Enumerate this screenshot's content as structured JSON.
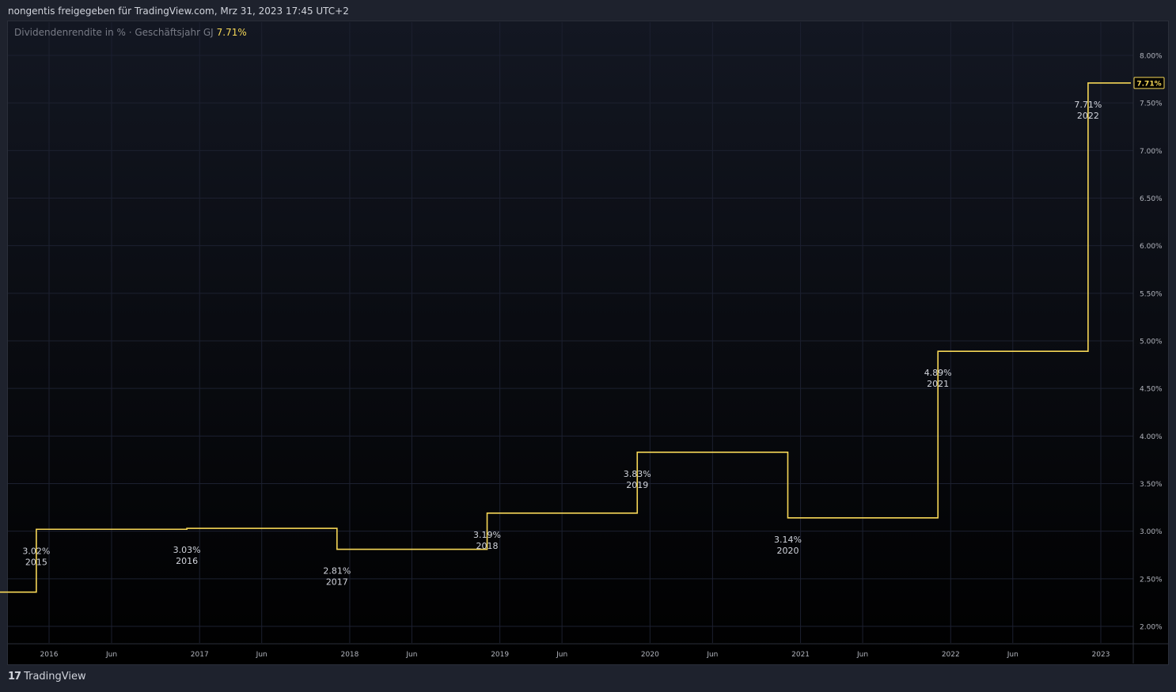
{
  "header": {
    "shared_by": "nongentis freigegeben für TradingView.com, Mrz 31, 2023 17:45 UTC+2"
  },
  "legend": {
    "label": "Dividendenrendite in % · Geschäftsjahr GJ",
    "value": "7.71%"
  },
  "footer": {
    "logo_icon": "tradingview-logo-icon",
    "brand": "TradingView"
  },
  "colors": {
    "line": "#f6d757",
    "grid": "#1c2030",
    "axis_text": "#b2b5be",
    "label_text": "#d1d4dc"
  },
  "chart_data": {
    "type": "line",
    "step": true,
    "series": [
      {
        "values": [
          {
            "x": "2015-08-01",
            "y": 2.36
          },
          {
            "x": "2015-12-01",
            "y": 3.02
          },
          {
            "x": "2016-12-01",
            "y": 3.03
          },
          {
            "x": "2017-12-01",
            "y": 2.81
          },
          {
            "x": "2018-11-01",
            "y": 2.81
          },
          {
            "x": "2018-12-01",
            "y": 3.19
          },
          {
            "x": "2019-12-01",
            "y": 3.83
          },
          {
            "x": "2020-12-01",
            "y": 3.14
          },
          {
            "x": "2021-12-01",
            "y": 4.89
          },
          {
            "x": "2022-12-01",
            "y": 7.71
          },
          {
            "x": "2023-03-15",
            "y": 7.71
          }
        ]
      }
    ],
    "annotations": [
      {
        "x": "2015-12-01",
        "value": "3.02%",
        "year": "2015",
        "pos": "below"
      },
      {
        "x": "2016-12-01",
        "value": "3.03%",
        "year": "2016",
        "pos": "below"
      },
      {
        "x": "2017-12-01",
        "value": "2.81%",
        "year": "2017",
        "pos": "below"
      },
      {
        "x": "2018-12-01",
        "value": "3.19%",
        "year": "2018",
        "pos": "below"
      },
      {
        "x": "2019-12-01",
        "value": "3.83%",
        "year": "2019",
        "pos": "below"
      },
      {
        "x": "2020-12-01",
        "value": "3.14%",
        "year": "2020",
        "pos": "below"
      },
      {
        "x": "2021-12-01",
        "value": "4.89%",
        "year": "2021",
        "pos": "below"
      },
      {
        "x": "2022-12-01",
        "value": "7.71%",
        "year": "2022",
        "pos": "below"
      }
    ],
    "x_ticks": [
      {
        "x": "2016-01-01",
        "label": "2016"
      },
      {
        "x": "2016-06-01",
        "label": "Jun"
      },
      {
        "x": "2017-01-01",
        "label": "2017"
      },
      {
        "x": "2017-06-01",
        "label": "Jun"
      },
      {
        "x": "2018-01-01",
        "label": "2018"
      },
      {
        "x": "2018-06-01",
        "label": "Jun"
      },
      {
        "x": "2019-01-01",
        "label": "2019"
      },
      {
        "x": "2019-06-01",
        "label": "Jun"
      },
      {
        "x": "2020-01-01",
        "label": "2020"
      },
      {
        "x": "2020-06-01",
        "label": "Jun"
      },
      {
        "x": "2021-01-01",
        "label": "2021"
      },
      {
        "x": "2021-06-01",
        "label": "Jun"
      },
      {
        "x": "2022-01-01",
        "label": "2022"
      },
      {
        "x": "2022-06-01",
        "label": "Jun"
      },
      {
        "x": "2023-01-01",
        "label": "2023"
      }
    ],
    "y_ticks": [
      {
        "y": 2.0,
        "label": "2.00%"
      },
      {
        "y": 2.5,
        "label": "2.50%"
      },
      {
        "y": 3.0,
        "label": "3.00%"
      },
      {
        "y": 3.5,
        "label": "3.50%"
      },
      {
        "y": 4.0,
        "label": "4.00%"
      },
      {
        "y": 4.5,
        "label": "4.50%"
      },
      {
        "y": 5.0,
        "label": "5.00%"
      },
      {
        "y": 5.5,
        "label": "5.50%"
      },
      {
        "y": 6.0,
        "label": "6.00%"
      },
      {
        "y": 6.5,
        "label": "6.50%"
      },
      {
        "y": 7.0,
        "label": "7.00%"
      },
      {
        "y": 7.5,
        "label": "7.50%"
      },
      {
        "y": 8.0,
        "label": "8.00%"
      }
    ],
    "last_value_label": "7.71%",
    "grid": true
  }
}
